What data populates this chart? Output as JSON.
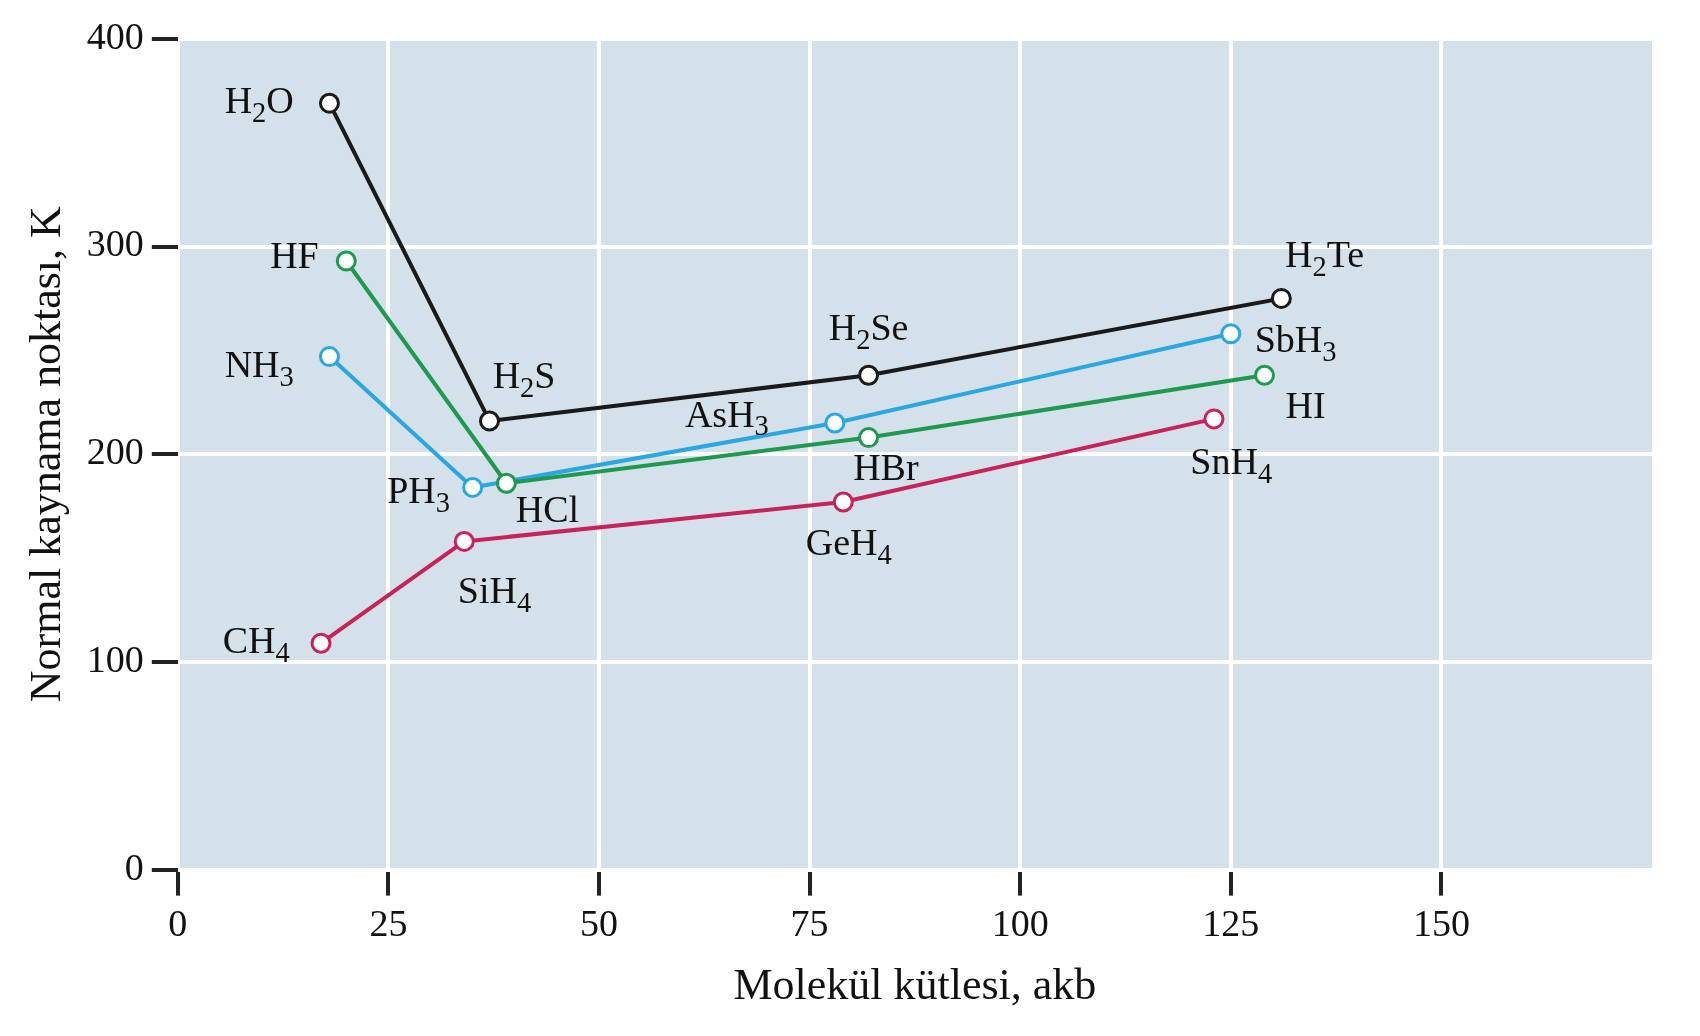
{
  "chart_data": {
    "type": "line",
    "xlabel": "Molekül kütlesi, akb",
    "ylabel": "Normal kaynama noktası, K",
    "xlim": [
      0,
      175
    ],
    "xticks": [
      0,
      25,
      50,
      75,
      100,
      125,
      150
    ],
    "ylim": [
      0,
      400
    ],
    "yticks": [
      0,
      100,
      200,
      300,
      400
    ],
    "grid": true,
    "marker": "circle",
    "line_style": "solid",
    "series": [
      {
        "color": "#1a1a1a",
        "x": [
          18,
          37,
          82,
          131
        ],
        "values": [
          369,
          216,
          238,
          275
        ]
      },
      {
        "color": "#1e9a50",
        "x": [
          20,
          39,
          82,
          129
        ],
        "values": [
          293,
          186,
          208,
          238
        ]
      },
      {
        "color": "#2aa6e0",
        "x": [
          18,
          35,
          78,
          125
        ],
        "values": [
          247,
          184,
          215,
          258
        ]
      },
      {
        "color": "#c8225a",
        "x": [
          17,
          34,
          79,
          123
        ],
        "values": [
          109,
          158,
          177,
          217
        ]
      }
    ],
    "annotations": [
      {
        "text": "H$_{2}$O",
        "x": 18,
        "y": 369
      },
      {
        "text": "H$_{2}$S",
        "x": 37,
        "y": 216
      },
      {
        "text": "H$_{2}$Se",
        "x": 82,
        "y": 238
      },
      {
        "text": "H$_{2}$Te",
        "x": 131,
        "y": 275
      },
      {
        "text": "HF",
        "x": 20,
        "y": 293
      },
      {
        "text": "HCl",
        "x": 39,
        "y": 186
      },
      {
        "text": "HBr",
        "x": 82,
        "y": 208
      },
      {
        "text": "HI",
        "x": 129,
        "y": 238
      },
      {
        "text": "NH$_{3}$",
        "x": 18,
        "y": 247
      },
      {
        "text": "PH$_{3}$",
        "x": 35,
        "y": 184
      },
      {
        "text": "AsH$_{3}$",
        "x": 78,
        "y": 215
      },
      {
        "text": "SbH$_{3}$",
        "x": 125,
        "y": 258
      },
      {
        "text": "CH$_{4}$",
        "x": 17,
        "y": 109
      },
      {
        "text": "SiH$_{4}$",
        "x": 34,
        "y": 158
      },
      {
        "text": "GeH$_{4}$",
        "x": 79,
        "y": 177
      },
      {
        "text": "SnH$_{4}$",
        "x": 123,
        "y": 217
      }
    ]
  }
}
